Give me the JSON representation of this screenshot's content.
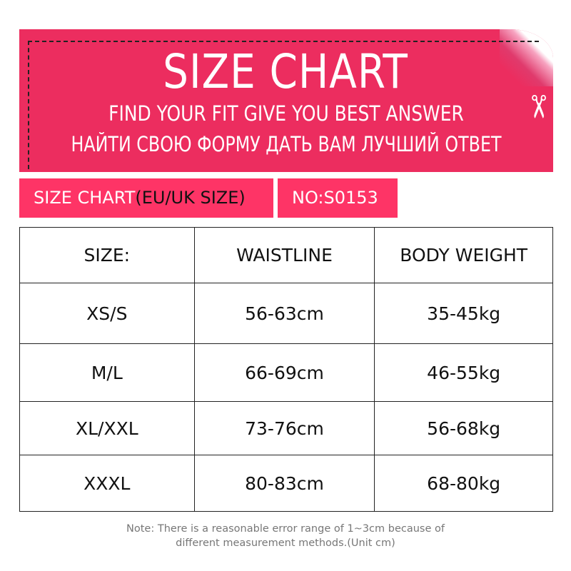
{
  "header": {
    "title": "SIZE  CHART",
    "subtitle_en": "FIND YOUR FIT GIVE YOU BEST ANSWER",
    "subtitle_ru": "НАЙТИ СВОЮ ФОРМУ ДАТЬ ВАМ ЛУЧШИЙ ОТВЕТ",
    "icon": "scissors-icon"
  },
  "tags": {
    "chart_label": "SIZE  CHART",
    "chart_region": "(EU/UK SIZE)",
    "number": "NO:S0153"
  },
  "table": {
    "headers": [
      "SIZE:",
      "WAISTLINE",
      "BODY WEIGHT"
    ],
    "rows": [
      [
        "XS/S",
        "56-63cm",
        "35-45kg"
      ],
      [
        "M/L",
        "66-69cm",
        "46-55kg"
      ],
      [
        "XL/XXL",
        "73-76cm",
        "56-68kg"
      ],
      [
        "XXXL",
        "80-83cm",
        "68-80kg"
      ]
    ]
  },
  "note": {
    "line1": "Note: There is a reasonable error range of 1~3cm because of",
    "line2": "different measurement methods.(Unit cm)"
  },
  "colors": {
    "banner": "#EC2D5F",
    "tag": "#FE3466",
    "text_on_pink": "#FFFFFF"
  }
}
